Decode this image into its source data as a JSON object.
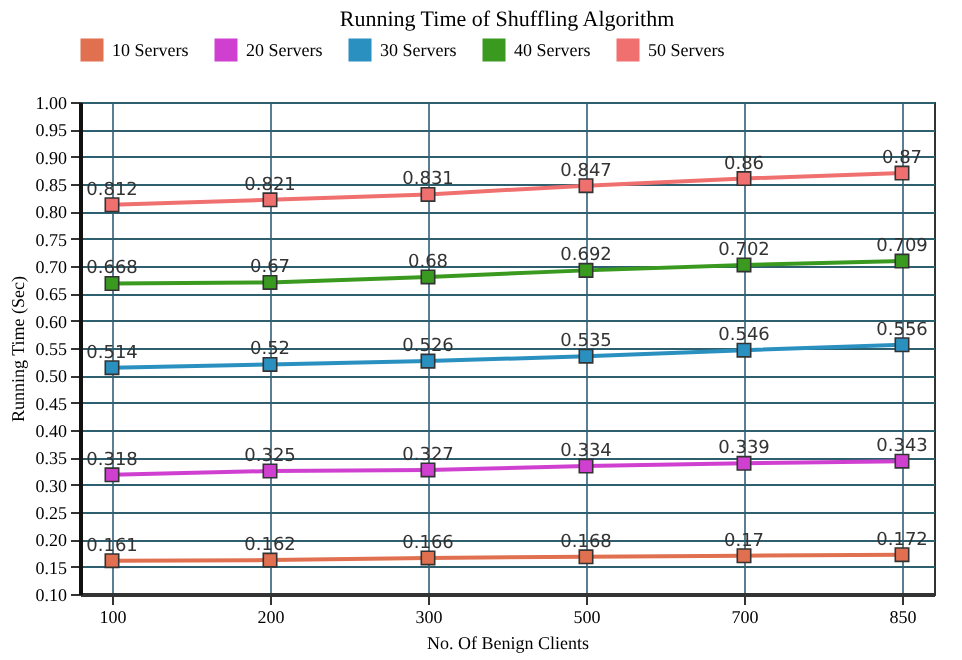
{
  "chart_data": {
    "type": "line",
    "title": "Running Time of Shuffling Algorithm",
    "xlabel": "No. Of Benign Clients",
    "ylabel": "Running Time (Sec)",
    "categories": [
      "100",
      "200",
      "300",
      "500",
      "700",
      "850"
    ],
    "series": [
      {
        "name": "10 Servers",
        "color": "#e0704f",
        "values": [
          0.161,
          0.162,
          0.166,
          0.168,
          0.17,
          0.172
        ]
      },
      {
        "name": "20 Servers",
        "color": "#d040d0",
        "values": [
          0.318,
          0.325,
          0.327,
          0.334,
          0.339,
          0.343
        ]
      },
      {
        "name": "30 Servers",
        "color": "#2a90c0",
        "values": [
          0.514,
          0.52,
          0.526,
          0.535,
          0.546,
          0.556
        ]
      },
      {
        "name": "40 Servers",
        "color": "#3a9a20",
        "values": [
          0.668,
          0.67,
          0.68,
          0.692,
          0.702,
          0.709
        ]
      },
      {
        "name": "50 Servers",
        "color": "#f07070",
        "values": [
          0.812,
          0.821,
          0.831,
          0.847,
          0.86,
          0.87
        ]
      }
    ],
    "ylim": [
      0.1,
      1.0
    ],
    "yticks": [
      {
        "value": 0.1,
        "label": "0.10"
      },
      {
        "value": 0.15,
        "label": "0.15"
      },
      {
        "value": 0.2,
        "label": "0.20"
      },
      {
        "value": 0.25,
        "label": "0.25"
      },
      {
        "value": 0.3,
        "label": "0.30"
      },
      {
        "value": 0.35,
        "label": "0.35"
      },
      {
        "value": 0.4,
        "label": "0.40"
      },
      {
        "value": 0.45,
        "label": "0.45"
      },
      {
        "value": 0.5,
        "label": "0.50"
      },
      {
        "value": 0.55,
        "label": "0.55"
      },
      {
        "value": 0.6,
        "label": "0.60"
      },
      {
        "value": 0.65,
        "label": "0.65"
      },
      {
        "value": 0.7,
        "label": "0.70"
      },
      {
        "value": 0.75,
        "label": "0.75"
      },
      {
        "value": 0.8,
        "label": "0.80"
      },
      {
        "value": 0.85,
        "label": "0.85"
      },
      {
        "value": 0.9,
        "label": "0.90"
      },
      {
        "value": 0.95,
        "label": "0.95"
      },
      {
        "value": 1.0,
        "label": "1.00"
      }
    ],
    "grid": true,
    "legend": "top",
    "marker": "square",
    "line_style": "solid",
    "data_labels": true
  }
}
